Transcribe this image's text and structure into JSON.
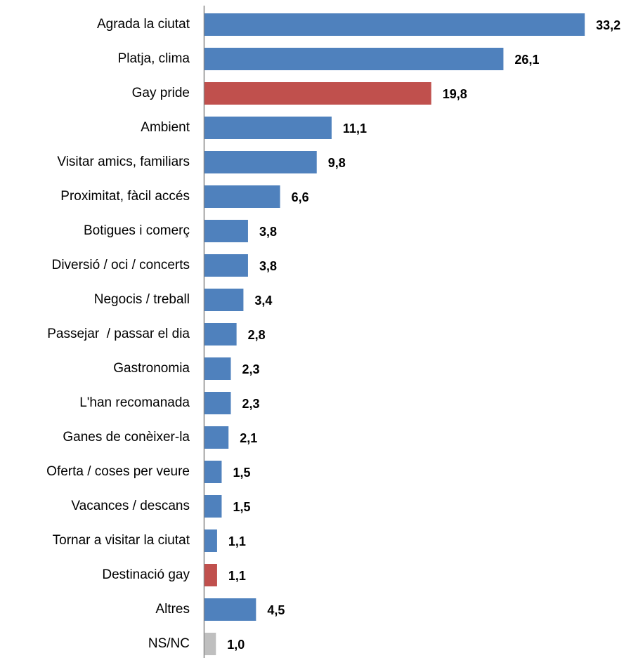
{
  "chart_data": {
    "type": "bar",
    "orientation": "horizontal",
    "categories": [
      "Agrada la ciutat",
      "Platja, clima",
      "Gay pride",
      "Ambient",
      "Visitar amics, familiars",
      "Proximitat, fàcil accés",
      "Botigues i comerç",
      "Diversió / oci / concerts",
      "Negocis / treball",
      "Passejar  / passar el dia",
      "Gastronomia",
      "L'han recomanada",
      "Ganes de conèixer-la",
      "Oferta / coses per veure",
      "Vacances / descans",
      "Tornar a visitar la ciutat",
      "Destinació gay",
      "Altres",
      "NS/NC"
    ],
    "values": [
      33.2,
      26.1,
      19.8,
      11.1,
      9.8,
      6.6,
      3.8,
      3.8,
      3.4,
      2.8,
      2.3,
      2.3,
      2.1,
      1.5,
      1.5,
      1.1,
      1.1,
      4.5,
      1.0
    ],
    "value_labels": [
      "33,2",
      "26,1",
      "19,8",
      "11,1",
      "9,8",
      "6,6",
      "3,8",
      "3,8",
      "3,4",
      "2,8",
      "2,3",
      "2,3",
      "2,1",
      "1,5",
      "1,5",
      "1,1",
      "1,1",
      "4,5",
      "1,0"
    ],
    "colors": [
      "#4f81bd",
      "#4f81bd",
      "#c0504d",
      "#4f81bd",
      "#4f81bd",
      "#4f81bd",
      "#4f81bd",
      "#4f81bd",
      "#4f81bd",
      "#4f81bd",
      "#4f81bd",
      "#4f81bd",
      "#4f81bd",
      "#4f81bd",
      "#4f81bd",
      "#4f81bd",
      "#c0504d",
      "#4f81bd",
      "#bfbfbf"
    ],
    "xlim": [
      0,
      35
    ]
  }
}
